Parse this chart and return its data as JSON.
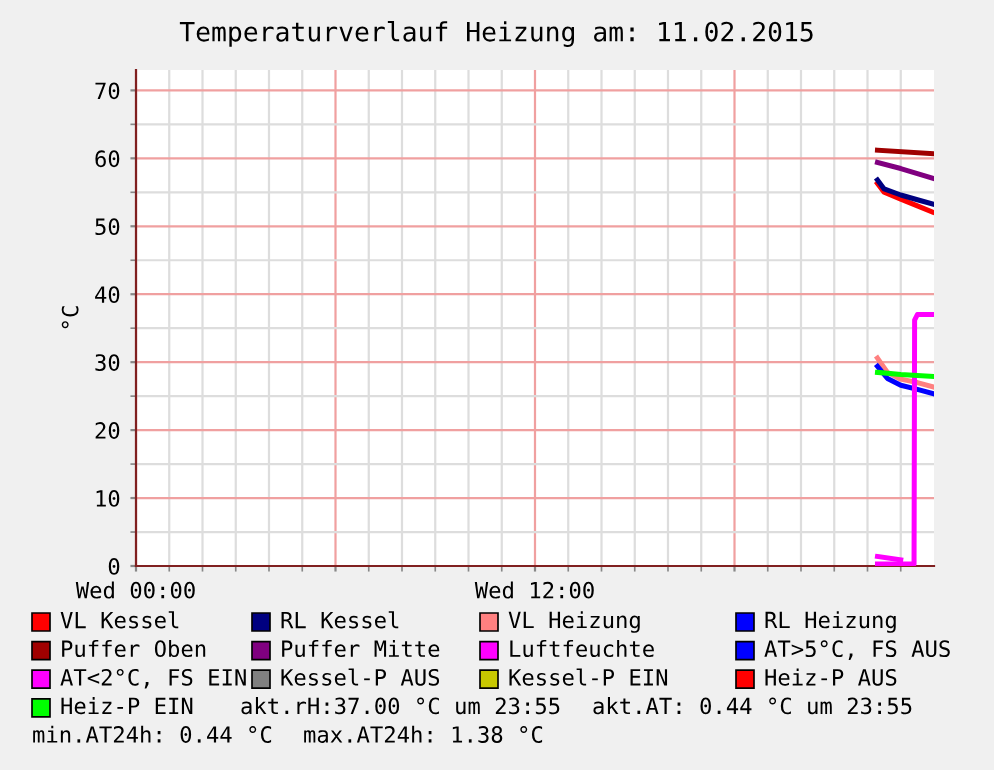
{
  "chart_data": {
    "type": "line",
    "title": "Temperaturverlauf Heizung am: 11.02.2015",
    "ylabel": "°C",
    "xlim": [
      "2015-02-11T00:00",
      "2015-02-12T00:00"
    ],
    "ylim": [
      0,
      73
    ],
    "xticks": [
      {
        "value": "2015-02-11T00:00",
        "label": "Wed 00:00"
      },
      {
        "value": "2015-02-11T06:00",
        "label": null
      },
      {
        "value": "2015-02-11T12:00",
        "label": "Wed 12:00"
      },
      {
        "value": "2015-02-11T18:00",
        "label": null
      }
    ],
    "yticks": [
      0,
      10,
      20,
      30,
      40,
      50,
      60,
      70
    ],
    "grid": true,
    "legend": "bottom",
    "marker": "none",
    "line_style": "solid",
    "series": [
      {
        "name": "VL Kessel",
        "color": "#ff0000",
        "x": [
          "2015-02-11T22:18",
          "2015-02-11T22:30",
          "2015-02-11T23:00",
          "2015-02-11T23:30",
          "2015-02-11T23:57"
        ],
        "values": [
          56.3,
          55.0,
          54.0,
          53.0,
          52.1
        ]
      },
      {
        "name": "RL Kessel",
        "color": "#000080",
        "x": [
          "2015-02-11T22:18",
          "2015-02-11T22:30",
          "2015-02-11T23:00",
          "2015-02-11T23:30",
          "2015-02-11T23:57"
        ],
        "values": [
          56.8,
          55.5,
          54.6,
          53.9,
          53.3
        ]
      },
      {
        "name": "VL Heizung",
        "color": "#ff8080",
        "x": [
          "2015-02-11T22:18",
          "2015-02-11T22:36",
          "2015-02-11T23:00",
          "2015-02-11T23:30",
          "2015-02-11T23:57"
        ],
        "values": [
          30.6,
          28.5,
          27.5,
          27.0,
          26.4
        ]
      },
      {
        "name": "RL Heizung",
        "color": "#0000ff",
        "x": [
          "2015-02-11T22:18",
          "2015-02-11T22:36",
          "2015-02-11T23:00",
          "2015-02-11T23:30",
          "2015-02-11T23:57"
        ],
        "values": [
          29.4,
          27.6,
          26.6,
          26.0,
          25.4
        ]
      },
      {
        "name": "Puffer Oben",
        "color": "#a00000",
        "x": [
          "2015-02-11T22:18",
          "2015-02-11T23:57"
        ],
        "values": [
          61.2,
          60.7
        ]
      },
      {
        "name": "Puffer Mitte",
        "color": "#800080",
        "x": [
          "2015-02-11T22:18",
          "2015-02-11T23:00",
          "2015-02-11T23:57"
        ],
        "values": [
          59.4,
          58.5,
          57.1
        ]
      },
      {
        "name": "Luftfeuchte",
        "color": "#ff00ff",
        "x": [
          "2015-02-11T22:18",
          "2015-02-11T23:24",
          "2015-02-11T23:25",
          "2015-02-11T23:30",
          "2015-02-11T23:57"
        ],
        "values": [
          0.3,
          0.3,
          36.2,
          37.0,
          37.0
        ]
      },
      {
        "name": "AT>5°C, FS AUS",
        "color": "#0000ff"
      },
      {
        "name": "AT<2°C, FS EIN",
        "color": "#ff00ff",
        "x": [
          "2015-02-11T22:18",
          "2015-02-11T23:00"
        ],
        "values": [
          1.4,
          0.9
        ]
      },
      {
        "name": "Kessel-P AUS",
        "color": "#808080"
      },
      {
        "name": "Kessel-P EIN",
        "color": "#c8c800"
      },
      {
        "name": "Heiz-P AUS",
        "color": "#ff0000"
      },
      {
        "name": "Heiz-P EIN",
        "color": "#00ff00",
        "x": [
          "2015-02-11T22:18",
          "2015-02-11T23:00",
          "2015-02-11T23:57"
        ],
        "values": [
          28.5,
          28.2,
          27.9
        ]
      }
    ],
    "annotations": [
      "akt.rH:37.00 °C um 23:55",
      "akt.AT: 0.44 °C um 23:55",
      "min.AT24h: 0.44 °C",
      "max.AT24h: 1.38 °C"
    ]
  }
}
